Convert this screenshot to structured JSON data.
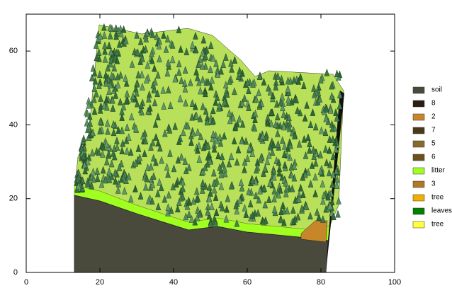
{
  "chart_data": {
    "type": "terrain",
    "xlim": [
      0,
      100
    ],
    "xticks": [
      0,
      20,
      40,
      60,
      80,
      100
    ],
    "ylim": [
      0,
      70
    ],
    "yticks": [
      0,
      20,
      40,
      60
    ],
    "legend": [
      {
        "name": "soil",
        "color": "#4a4a3c"
      },
      {
        "name": "8",
        "color": "#2b1e10"
      },
      {
        "name": "2",
        "color": "#c8862a"
      },
      {
        "name": "7",
        "color": "#4a3a1a"
      },
      {
        "name": "5",
        "color": "#8a6a2a"
      },
      {
        "name": "6",
        "color": "#6b5020"
      },
      {
        "name": "litter",
        "color": "#a0ff20"
      },
      {
        "name": "3",
        "color": "#b07828"
      },
      {
        "name": "tree",
        "color": "#f0b000"
      },
      {
        "name": "leaves",
        "color": "#008000"
      },
      {
        "name": "tree",
        "color": "#ffff40"
      }
    ]
  }
}
